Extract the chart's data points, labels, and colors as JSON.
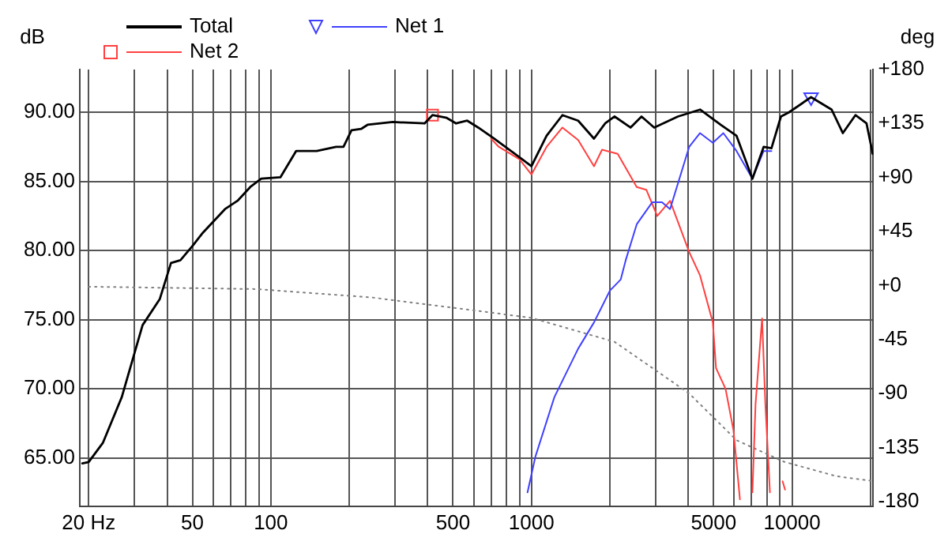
{
  "chart_data": {
    "type": "line",
    "ylabel": "dB",
    "y2label": "deg",
    "log": "x",
    "grid": true,
    "legend": "top left",
    "xlim": [
      18.5,
      20500
    ],
    "xticks": [
      {
        "value": 20,
        "label": "20 Hz"
      },
      {
        "value": 30,
        "label": null
      },
      {
        "value": 40,
        "label": null
      },
      50,
      {
        "value": 60,
        "label": null
      },
      {
        "value": 70,
        "label": null
      },
      {
        "value": 80,
        "label": null
      },
      {
        "value": 90,
        "label": null
      },
      100,
      {
        "value": 200,
        "label": null
      },
      {
        "value": 300,
        "label": null
      },
      {
        "value": 400,
        "label": null
      },
      500,
      {
        "value": 600,
        "label": null
      },
      {
        "value": 700,
        "label": null
      },
      {
        "value": 800,
        "label": null
      },
      {
        "value": 900,
        "label": null
      },
      1000,
      {
        "value": 2000,
        "label": null
      },
      {
        "value": 3000,
        "label": null
      },
      {
        "value": 4000,
        "label": null
      },
      5000,
      {
        "value": 6000,
        "label": null
      },
      {
        "value": 7000,
        "label": null
      },
      {
        "value": 8000,
        "label": null
      },
      {
        "value": 9000,
        "label": null
      },
      10000,
      {
        "value": 20000,
        "label": null
      }
    ],
    "ylim": [
      61.5,
      93.1
    ],
    "yticks": [
      {
        "value": 65,
        "label": "65.00"
      },
      {
        "value": 70,
        "label": "70.00"
      },
      {
        "value": 75,
        "label": "75.00"
      },
      {
        "value": 80,
        "label": "80.00"
      },
      {
        "value": 85,
        "label": "85.00"
      },
      {
        "value": 90,
        "label": "90.00"
      }
    ],
    "y2lim": [
      -184,
      180
    ],
    "y2ticks": [
      -180,
      -135,
      -90,
      -45,
      {
        "value": 0,
        "label": "+0"
      },
      {
        "value": 45,
        "label": "+45"
      },
      {
        "value": 90,
        "label": "+90"
      },
      {
        "value": 135,
        "label": "+135"
      },
      {
        "value": 180,
        "label": "+180"
      }
    ],
    "series": [
      {
        "name": "Total",
        "color": "#000000",
        "x": [
          18.9,
          20,
          22.7,
          26.8,
          32.2,
          37.5,
          41.4,
          45,
          50.4,
          54.9,
          66.7,
          74.5,
          83.4,
          91.9,
          108.8,
          125,
          150,
          178,
          190,
          204,
          222,
          235,
          294,
          389,
          417,
          473,
          514,
          567,
          625,
          719,
          863,
          1000,
          1143,
          1315,
          1511,
          1738,
          1918,
          2085,
          2400,
          2645,
          2958,
          3648,
          4436,
          5321,
          6124,
          7046,
          7780,
          8337,
          9065,
          9726,
          11830,
          14190,
          15660,
          17510,
          19310,
          20400
        ],
        "values": [
          64.6,
          64.7,
          66.1,
          69.4,
          74.6,
          76.5,
          79.1,
          79.3,
          80.4,
          81.3,
          83.0,
          83.6,
          84.6,
          85.2,
          85.3,
          87.2,
          87.2,
          87.5,
          87.5,
          88.7,
          88.8,
          89.1,
          89.3,
          89.2,
          89.8,
          89.6,
          89.2,
          89.4,
          88.9,
          88.1,
          87.0,
          86.1,
          88.3,
          89.8,
          89.4,
          88.1,
          89.2,
          89.7,
          88.9,
          89.7,
          88.9,
          89.7,
          90.2,
          89.1,
          88.3,
          85.2,
          87.5,
          87.4,
          89.7,
          90.0,
          91.1,
          90.2,
          88.5,
          89.8,
          89.2,
          87.0
        ]
      },
      {
        "name": "Net 1",
        "color": "#4040ff",
        "x": [
          966,
          1036,
          1225,
          1511,
          1738,
          2000,
          2200,
          2300,
          2535,
          2910,
          3170,
          3404,
          4029,
          4436,
          4966,
          5450,
          6124,
          7046,
          7780,
          8337
        ],
        "values": [
          62.5,
          65.1,
          69.4,
          72.9,
          74.8,
          77.1,
          77.9,
          79.3,
          81.9,
          83.5,
          83.5,
          83.0,
          87.5,
          88.5,
          87.8,
          88.5,
          87.2,
          85.2,
          87.2,
          87.2
        ]
      },
      {
        "type": "scatter",
        "color": "#4040ff",
        "marker": "triangle",
        "x": [
          11830
        ],
        "values": [
          91.1
        ]
      },
      {
        "type": "scatter",
        "color": "#ff4040",
        "marker": "square",
        "x": [
          417
        ],
        "values": [
          89.8
        ]
      },
      {
        "name": "Net 2",
        "color": "#ff4040",
        "x": [
          700,
          750,
          900,
          1000,
          1143,
          1315,
          1511,
          1738,
          1866,
          2143,
          2535,
          2759,
          3040,
          3404,
          4029,
          4436,
          4966,
          5108,
          5557,
          5960,
          6310,
          6700,
          7046,
          7244,
          7674,
          7900,
          8225,
          8700,
          9200,
          9400
        ],
        "values": [
          88.1,
          87.5,
          86.6,
          85.5,
          87.5,
          88.9,
          88.0,
          86.1,
          87.3,
          87.0,
          84.6,
          84.4,
          82.5,
          83.6,
          79.9,
          78.2,
          74.8,
          71.5,
          70.0,
          67.0,
          62.0,
          null,
          62.5,
          68.9,
          75.1,
          68.9,
          62.5,
          null,
          63.3,
          62.7
        ]
      },
      {
        "color": "#808080",
        "axis": "y2",
        "line_style": "dotted",
        "x": [
          20,
          88,
          245,
          567,
          1000,
          2085,
          4029,
          6124,
          9333,
          14800,
          20400
        ],
        "values": [
          -1,
          -3,
          -10,
          -20,
          -27,
          -47,
          -90,
          -129,
          -147,
          -159,
          -163
        ]
      }
    ]
  }
}
